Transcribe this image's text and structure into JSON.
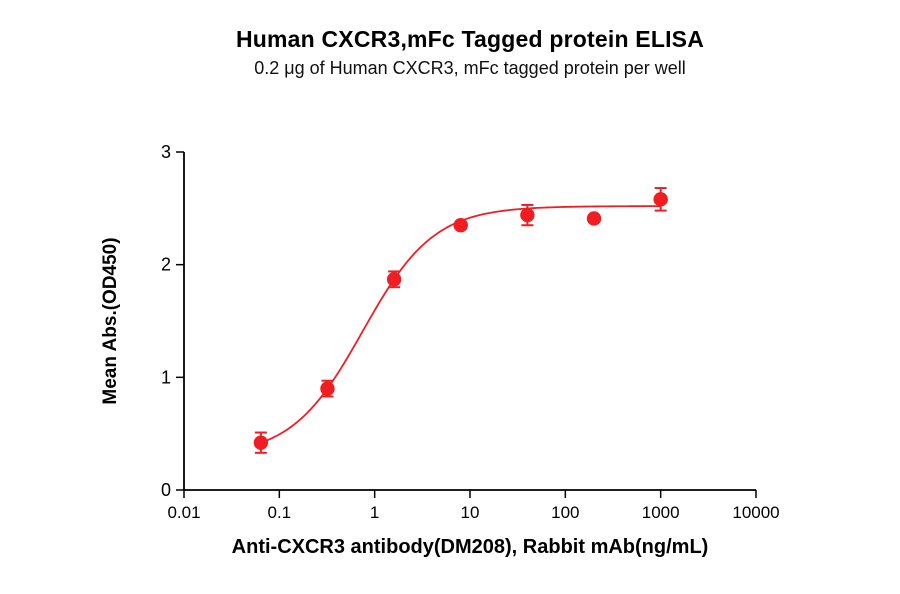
{
  "title": "Human CXCR3,mFc Tagged protein ELISA",
  "subtitle": "0.2 μg of Human CXCR3, mFc tagged protein per well",
  "colors": {
    "series_red": "#f01e23",
    "axis": "#000000",
    "background": "#ffffff"
  },
  "chart_data": {
    "type": "scatter",
    "title": "Human CXCR3,mFc Tagged protein ELISA",
    "subtitle": "0.2 μg of Human CXCR3, mFc tagged protein per well",
    "xlabel": "Anti-CXCR3 antibody(DM208), Rabbit mAb(ng/mL)",
    "ylabel": "Mean Abs.(OD450)",
    "x_scale": "log10",
    "xlim": [
      0.01,
      10000
    ],
    "ylim": [
      0,
      3
    ],
    "x_ticks": [
      0.01,
      0.1,
      1,
      10,
      100,
      1000,
      10000
    ],
    "x_tick_labels": [
      "0.01",
      "0.1",
      "1",
      "10",
      "100",
      "1000",
      "10000"
    ],
    "y_ticks": [
      0,
      1,
      2,
      3
    ],
    "y_tick_labels": [
      "0",
      "1",
      "2",
      "3"
    ],
    "grid": false,
    "legend": "none",
    "series": [
      {
        "name": "Anti-CXCR3 antibody (DM208), Rabbit mAb",
        "color": "#f01e23",
        "marker": "circle",
        "points": [
          {
            "x": 0.064,
            "y": 0.42,
            "err": 0.09
          },
          {
            "x": 0.32,
            "y": 0.9,
            "err": 0.07
          },
          {
            "x": 1.6,
            "y": 1.87,
            "err": 0.07
          },
          {
            "x": 8,
            "y": 2.35,
            "err": 0.03
          },
          {
            "x": 40,
            "y": 2.44,
            "err": 0.09
          },
          {
            "x": 200,
            "y": 2.41,
            "err": 0.03
          },
          {
            "x": 1000,
            "y": 2.58,
            "err": 0.1
          }
        ],
        "fit": {
          "model": "4PL",
          "bottom": 0.3,
          "top": 2.52,
          "ec50": 0.75,
          "hill": 1.165
        }
      }
    ]
  }
}
